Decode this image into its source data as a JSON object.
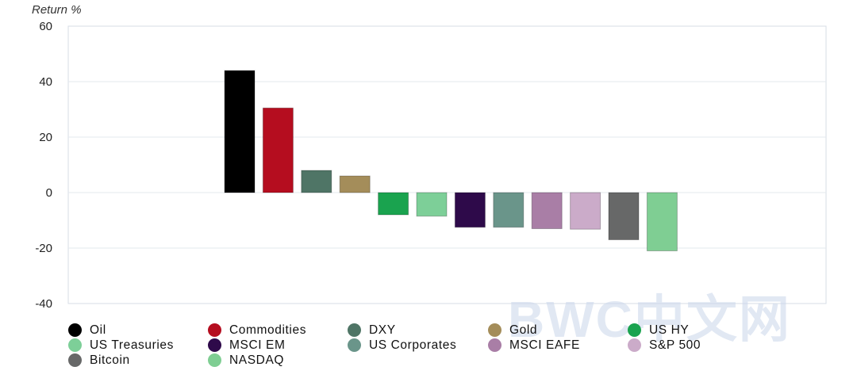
{
  "chart_data": {
    "type": "bar",
    "ylabel": "Return %",
    "ylim": [
      -40,
      60
    ],
    "yticks": [
      60,
      40,
      20,
      0,
      -20,
      -40
    ],
    "grid": true,
    "legend_position": "bottom",
    "categories": [
      "Oil",
      "Commodities",
      "DXY",
      "Gold",
      "US HY",
      "US Treasuries",
      "MSCI EM",
      "US Corporates",
      "MSCI EAFE",
      "S&P 500",
      "Bitcoin",
      "NASDAQ"
    ],
    "values": [
      44,
      30.5,
      8,
      6,
      -8,
      -8.5,
      -12.5,
      -12.5,
      -13,
      -13.2,
      -17,
      -21
    ],
    "colors": [
      "#000000",
      "#b50d1f",
      "#4f7566",
      "#a48d5a",
      "#1aa34f",
      "#7dcf98",
      "#2e0a4a",
      "#6a958a",
      "#a97ea6",
      "#cbabc9",
      "#676868",
      "#7fce93"
    ]
  },
  "watermark": "BWC中文网"
}
